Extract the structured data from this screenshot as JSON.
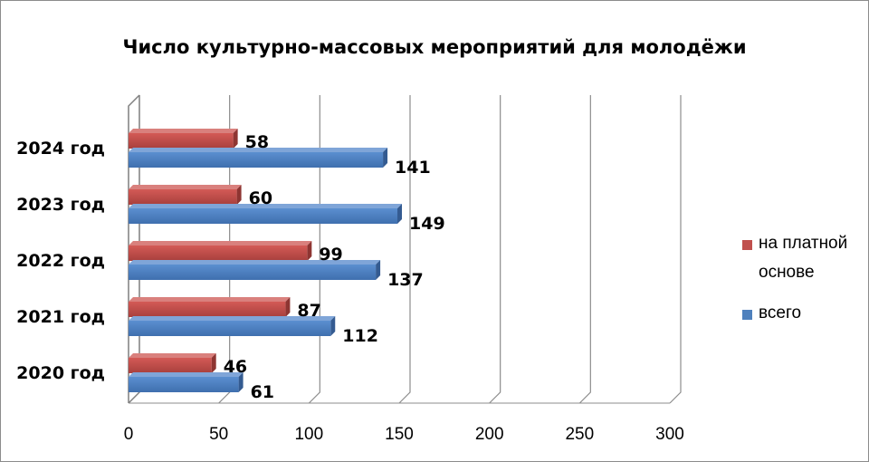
{
  "chart_data": {
    "type": "bar",
    "orientation": "horizontal",
    "title": "Число культурно-массовых мероприятий  для молодёжи",
    "categories": [
      "2020 год",
      "2021 год",
      "2022 год",
      "2023 год",
      "2024 год"
    ],
    "series": [
      {
        "name": "всего",
        "color": "#4f81bd",
        "values": [
          61,
          112,
          137,
          149,
          141
        ]
      },
      {
        "name": "на платной основе",
        "color": "#c0504d",
        "values": [
          46,
          87,
          99,
          60,
          58
        ]
      }
    ],
    "xlim": [
      0,
      300
    ],
    "xticks": [
      "0",
      "50",
      "100",
      "150",
      "200",
      "250",
      "300"
    ],
    "grid": true,
    "legend_position": "right",
    "legend": [
      {
        "label_line1": "на платной",
        "label_line2": "основе",
        "color": "#c0504d"
      },
      {
        "label_line1": "всего",
        "color": "#4f81bd"
      }
    ]
  }
}
